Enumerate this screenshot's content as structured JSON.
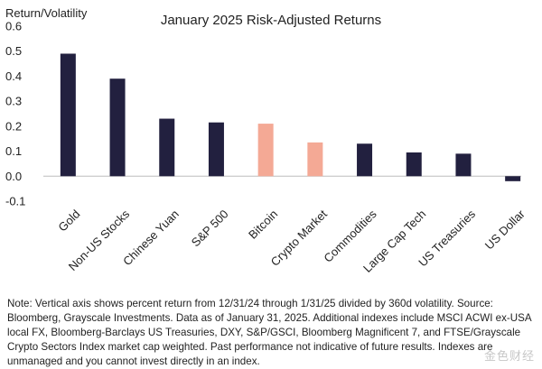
{
  "chart_data": {
    "type": "bar",
    "title": "January 2025 Risk-Adjusted Returns",
    "ylabel": "Return/Volatility",
    "xlabel": "",
    "ylim": [
      -0.1,
      0.6
    ],
    "yticks": [
      0.6,
      0.5,
      0.4,
      0.3,
      0.2,
      0.1,
      0.0,
      -0.1
    ],
    "ytick_labels": [
      "0.6",
      "0.5",
      "0.4",
      "0.3",
      "0.2",
      "0.1",
      "0.0",
      "-0.1"
    ],
    "grid": false,
    "categories": [
      "Gold",
      "Non-US Stocks",
      "Chinese Yuan",
      "S&P 500",
      "Bitcoin",
      "Crypto Market",
      "Commodities",
      "Large Cap Tech",
      "US Treasuries",
      "US Dollar"
    ],
    "values": [
      0.49,
      0.39,
      0.23,
      0.215,
      0.21,
      0.135,
      0.13,
      0.095,
      0.09,
      -0.02
    ],
    "colors": [
      "#22203f",
      "#22203f",
      "#22203f",
      "#22203f",
      "#f4a995",
      "#f4a995",
      "#22203f",
      "#22203f",
      "#22203f",
      "#22203f"
    ]
  },
  "footnote": "Note: Vertical axis shows percent return from 12/31/24 through 1/31/25 divided by 360d volatility. Source: Bloomberg, Grayscale Investments. Data as of January  31, 2025. Additional indexes include MSCI ACWI ex-USA local FX, Bloomberg-Barclays US Treasuries, DXY, S&P/GSCI, Bloomberg Magnificent 7, and FTSE/Grayscale Crypto Sectors Index market cap weighted. Past performance not indicative of future results. Indexes are unmanaged and you cannot invest directly in an index.",
  "watermark": "金色财经"
}
